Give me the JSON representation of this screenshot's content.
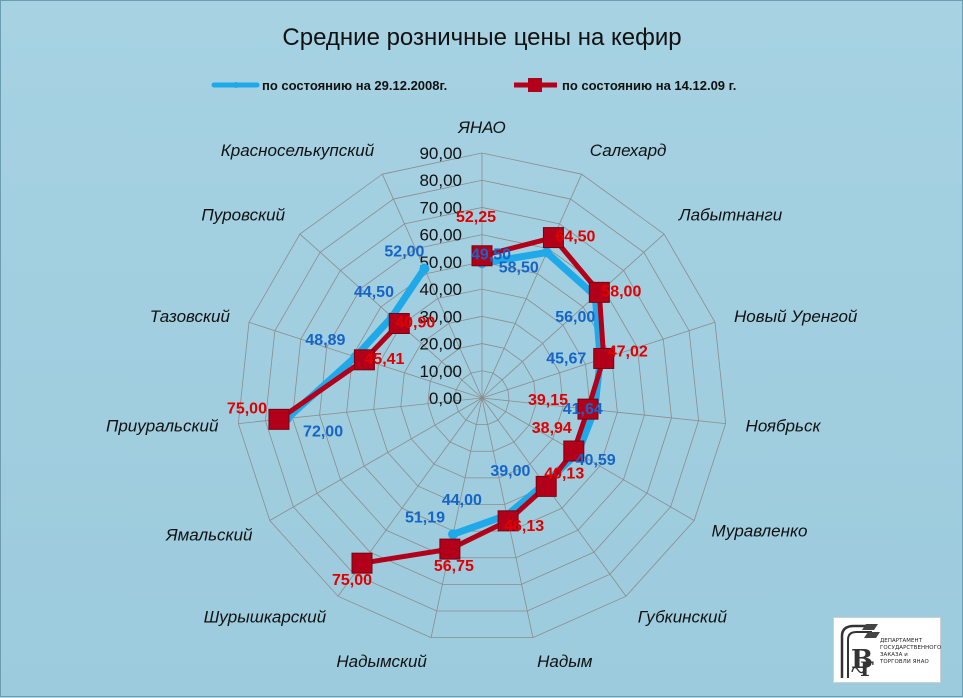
{
  "chart_data": {
    "type": "radar",
    "title": "Средние розничные цены на кефир",
    "rlim": [
      0,
      90
    ],
    "ticks": [
      "0,00",
      "10,00",
      "20,00",
      "30,00",
      "40,00",
      "50,00",
      "60,00",
      "70,00",
      "80,00",
      "90,00"
    ],
    "categories": [
      "ЯНАО",
      "Салехард",
      "Лабытнанги",
      "Новый Уренгой",
      "Ноябрьск",
      "Муравленко",
      "Губкинский",
      "Надым",
      "Надымский",
      "Шурышкарский",
      "Ямальский",
      "Приуральский",
      "Тазовский",
      "Пуровский",
      "Красноселькупский"
    ],
    "legend_position": "top",
    "series": [
      {
        "name": "по состоянию на 29.12.2008г.",
        "color": "#1fa9e8",
        "values": [
          49.5,
          58.5,
          56.0,
          45.67,
          41.64,
          40.59,
          39.0,
          44.0,
          51.19,
          null,
          null,
          72.0,
          48.89,
          44.5,
          52.0
        ],
        "labels": [
          "49,50",
          "58,50",
          "56,00",
          "45,67",
          "41,64",
          "40,59",
          "39,00",
          "44,00",
          "51,19",
          "",
          "",
          "72,00",
          "48,89",
          "44,50",
          "52,00"
        ],
        "label_color": "#1565c8"
      },
      {
        "name": "по состоянию на 14.12.09 г.",
        "color": "#b3001a",
        "values": [
          52.25,
          64.5,
          58.0,
          47.02,
          39.15,
          38.94,
          40.13,
          46.13,
          56.75,
          75.0,
          null,
          75.0,
          45.41,
          40.9,
          null
        ],
        "labels": [
          "52,25",
          "64,50",
          "58,00",
          "47,02",
          "39,15",
          "38,94",
          "40,13",
          "46,13",
          "56,75",
          "75,00",
          "",
          "75,00",
          "45,41",
          "40,90",
          ""
        ],
        "label_color": "#e00000"
      }
    ]
  },
  "logo": {
    "lines": [
      "ДЕПАРТАМЕНТ",
      "ГОСУДАРСТВЕННОГО",
      "ЗАКАЗА и ТОРГОВЛИ ЯНАО"
    ]
  }
}
